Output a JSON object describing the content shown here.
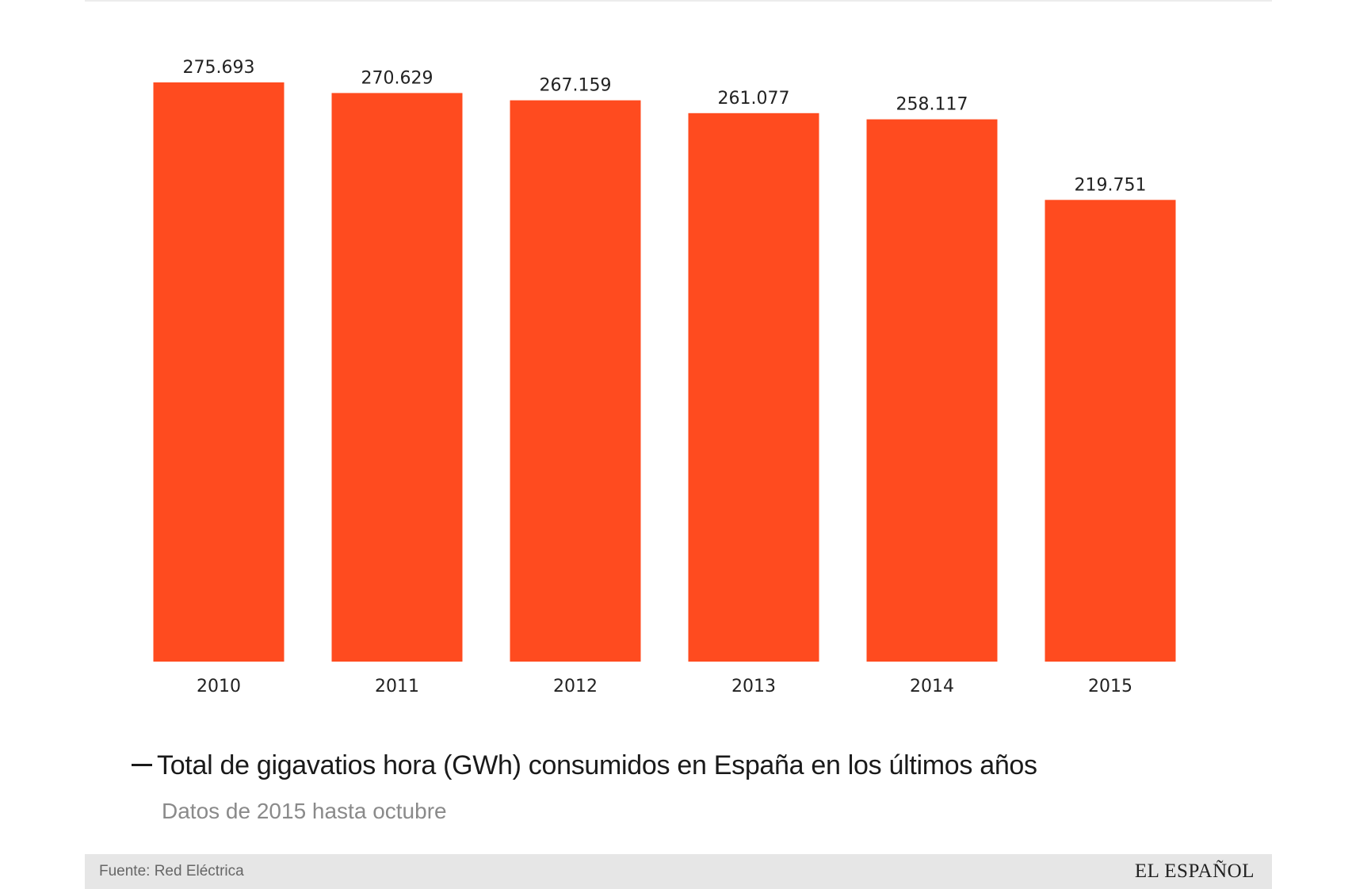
{
  "chart_data": {
    "type": "bar",
    "title": "Total de gigavatios hora (GWh) consumidos en España en los últimos años",
    "subtitle": "Datos de 2015 hasta octubre",
    "categories": [
      "2010",
      "2011",
      "2012",
      "2013",
      "2014",
      "2015"
    ],
    "values": [
      275693,
      270629,
      267159,
      261077,
      258117,
      219751
    ],
    "value_labels": [
      "275.693",
      "270.629",
      "267.159",
      "261.077",
      "258.117",
      "219.751"
    ],
    "ylim": [
      0,
      275693
    ],
    "grid": false,
    "legend": "none",
    "xlabel": "",
    "ylabel": ""
  },
  "colors": {
    "bar": "#ff4b1f"
  },
  "footer": {
    "source": "Fuente: Red Eléctrica",
    "logo": "EL ESPAÑOL"
  }
}
